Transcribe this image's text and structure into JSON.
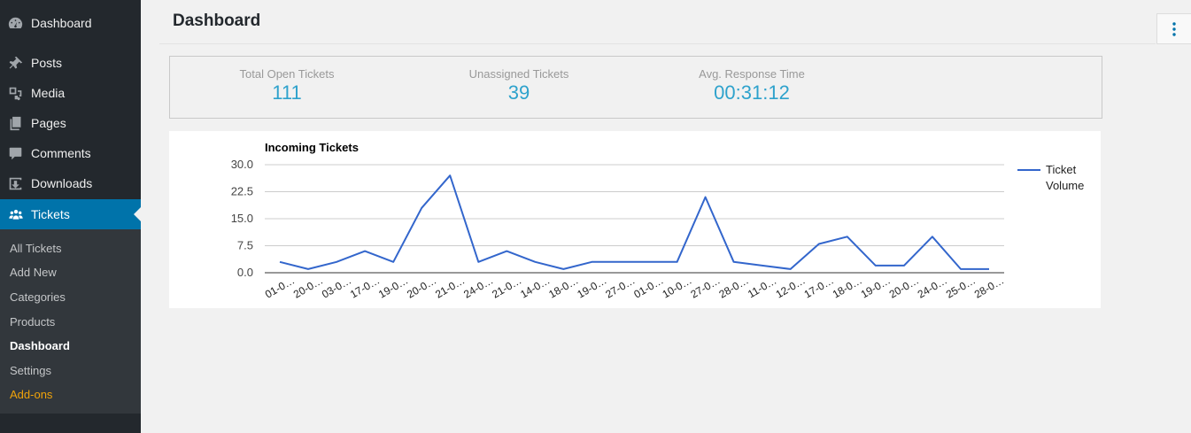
{
  "sidebar": {
    "items": [
      {
        "label": "Dashboard",
        "icon": "dashboard-icon"
      },
      {
        "label": "Posts",
        "icon": "pushpin-icon"
      },
      {
        "label": "Media",
        "icon": "media-icon"
      },
      {
        "label": "Pages",
        "icon": "pages-icon"
      },
      {
        "label": "Comments",
        "icon": "comments-icon"
      },
      {
        "label": "Downloads",
        "icon": "downloads-icon"
      },
      {
        "label": "Tickets",
        "icon": "groups-icon"
      }
    ],
    "submenu": [
      "All Tickets",
      "Add New",
      "Categories",
      "Products",
      "Dashboard",
      "Settings",
      "Add-ons"
    ]
  },
  "header": {
    "title": "Dashboard"
  },
  "stats": [
    {
      "label": "Total Open Tickets",
      "value": "111"
    },
    {
      "label": "Unassigned Tickets",
      "value": "39"
    },
    {
      "label": "Avg. Response Time",
      "value": "00:31:12"
    }
  ],
  "colors": {
    "accent": "#0073aa",
    "stat_value": "#2ea2cc",
    "line": "#3366cc",
    "addons": "#f0a30a"
  },
  "chart_data": {
    "type": "line",
    "title": "Incoming Tickets",
    "categories": [
      "01-0…",
      "20-0…",
      "03-0…",
      "17-0…",
      "19-0…",
      "20-0…",
      "21-0…",
      "24-0…",
      "21-0…",
      "14-0…",
      "18-0…",
      "19-0…",
      "27-0…",
      "01-0…",
      "10-0…",
      "27-0…",
      "28-0…",
      "11-0…",
      "12-0…",
      "17-0…",
      "18-0…",
      "19-0…",
      "20-0…",
      "24-0…",
      "25-0…",
      "28-0…"
    ],
    "series": [
      {
        "name": "Ticket Volume",
        "values": [
          3,
          1,
          3,
          6,
          3,
          18,
          27,
          3,
          6,
          3,
          1,
          3,
          3,
          3,
          3,
          21,
          3,
          2,
          1,
          8,
          10,
          2,
          2,
          10,
          1,
          1
        ]
      }
    ],
    "yticks": [
      "30.0",
      "22.5",
      "15.0",
      "7.5",
      "0.0"
    ],
    "ylim": [
      0,
      30
    ],
    "legend": "right",
    "grid": true
  }
}
